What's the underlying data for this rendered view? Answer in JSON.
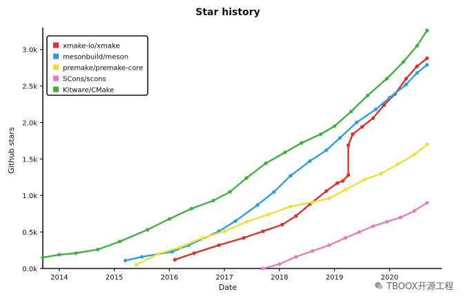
{
  "chart_data": {
    "type": "line",
    "title": "Star history",
    "xlabel": "Date",
    "ylabel": "Github stars",
    "xlim": [
      2013.7,
      2020.95
    ],
    "ylim": [
      0,
      3300
    ],
    "x_ticks": [
      2014,
      2015,
      2016,
      2017,
      2018,
      2019,
      2020
    ],
    "y_ticks": [
      0,
      500,
      1000,
      1500,
      2000,
      2500,
      3000
    ],
    "y_tick_labels": [
      "0.0k",
      "0.5k",
      "1.0k",
      "1.5k",
      "2.0k",
      "2.5k",
      "3.0k"
    ],
    "legend_position": "top-left",
    "grid": false,
    "series": [
      {
        "name": "xmake-io/xmake",
        "color": "#d93228",
        "points": [
          [
            2016.1,
            120
          ],
          [
            2016.45,
            210
          ],
          [
            2016.9,
            320
          ],
          [
            2017.35,
            420
          ],
          [
            2017.7,
            510
          ],
          [
            2018.05,
            600
          ],
          [
            2018.3,
            720
          ],
          [
            2018.55,
            880
          ],
          [
            2018.85,
            1060
          ],
          [
            2019.05,
            1170
          ],
          [
            2019.15,
            1200
          ],
          [
            2019.25,
            1280
          ],
          [
            2019.25,
            1690
          ],
          [
            2019.33,
            1840
          ],
          [
            2019.5,
            1940
          ],
          [
            2019.7,
            2060
          ],
          [
            2019.9,
            2240
          ],
          [
            2020.1,
            2390
          ],
          [
            2020.3,
            2600
          ],
          [
            2020.5,
            2770
          ],
          [
            2020.68,
            2880
          ]
        ]
      },
      {
        "name": "mesonbuild/meson",
        "color": "#2b9fdc",
        "points": [
          [
            2015.2,
            110
          ],
          [
            2015.5,
            160
          ],
          [
            2016.05,
            230
          ],
          [
            2016.35,
            320
          ],
          [
            2016.9,
            510
          ],
          [
            2017.2,
            650
          ],
          [
            2017.6,
            870
          ],
          [
            2017.9,
            1050
          ],
          [
            2018.2,
            1270
          ],
          [
            2018.55,
            1470
          ],
          [
            2018.85,
            1620
          ],
          [
            2019.1,
            1790
          ],
          [
            2019.4,
            2000
          ],
          [
            2019.75,
            2180
          ],
          [
            2020.0,
            2340
          ],
          [
            2020.3,
            2520
          ],
          [
            2020.5,
            2680
          ],
          [
            2020.68,
            2790
          ]
        ]
      },
      {
        "name": "premake/premake-core",
        "color": "#f2dd35",
        "points": [
          [
            2015.4,
            50
          ],
          [
            2015.8,
            200
          ],
          [
            2016.2,
            290
          ],
          [
            2016.6,
            420
          ],
          [
            2017.0,
            510
          ],
          [
            2017.4,
            640
          ],
          [
            2017.8,
            740
          ],
          [
            2018.2,
            850
          ],
          [
            2018.6,
            910
          ],
          [
            2018.9,
            960
          ],
          [
            2019.2,
            1080
          ],
          [
            2019.55,
            1220
          ],
          [
            2019.85,
            1300
          ],
          [
            2020.15,
            1430
          ],
          [
            2020.45,
            1560
          ],
          [
            2020.68,
            1700
          ]
        ]
      },
      {
        "name": "SCons/scons",
        "color": "#e87cba",
        "points": [
          [
            2017.7,
            0
          ],
          [
            2018.0,
            60
          ],
          [
            2018.3,
            160
          ],
          [
            2018.6,
            240
          ],
          [
            2018.9,
            320
          ],
          [
            2019.2,
            420
          ],
          [
            2019.45,
            500
          ],
          [
            2019.7,
            580
          ],
          [
            2019.95,
            640
          ],
          [
            2020.2,
            700
          ],
          [
            2020.45,
            790
          ],
          [
            2020.68,
            900
          ]
        ]
      },
      {
        "name": "Kitware/CMake",
        "color": "#3db03d",
        "points": [
          [
            2013.7,
            150
          ],
          [
            2014.0,
            190
          ],
          [
            2014.3,
            210
          ],
          [
            2014.7,
            260
          ],
          [
            2015.1,
            370
          ],
          [
            2015.6,
            530
          ],
          [
            2016.0,
            680
          ],
          [
            2016.4,
            820
          ],
          [
            2016.8,
            930
          ],
          [
            2017.1,
            1050
          ],
          [
            2017.4,
            1240
          ],
          [
            2017.75,
            1440
          ],
          [
            2018.1,
            1590
          ],
          [
            2018.4,
            1720
          ],
          [
            2018.75,
            1840
          ],
          [
            2019.0,
            1950
          ],
          [
            2019.3,
            2150
          ],
          [
            2019.6,
            2370
          ],
          [
            2019.95,
            2600
          ],
          [
            2020.25,
            2830
          ],
          [
            2020.5,
            3050
          ],
          [
            2020.68,
            3260
          ]
        ]
      }
    ]
  },
  "watermark": {
    "text": "TBOOX开源工程",
    "icon": "wechat-icon"
  }
}
